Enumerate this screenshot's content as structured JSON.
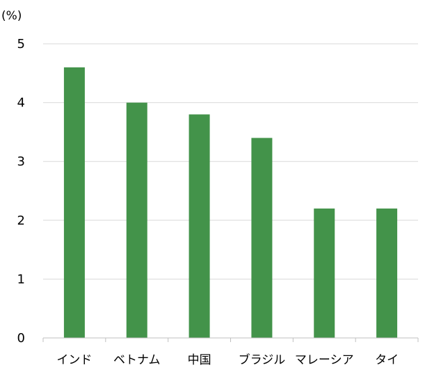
{
  "chart_data": {
    "type": "bar",
    "title": "",
    "xlabel": "",
    "ylabel": "",
    "unit_label": "(%)",
    "categories": [
      "インド",
      "ベトナム",
      "中国",
      "ブラジル",
      "マレーシア",
      "タイ"
    ],
    "values": [
      4.6,
      4.0,
      3.8,
      3.4,
      2.2,
      2.2
    ],
    "ylim": [
      0,
      5
    ],
    "yticks": [
      "0",
      "1",
      "2",
      "3",
      "4",
      "5"
    ],
    "grid": true,
    "legend": "none",
    "bar_color": "#43934a",
    "grid_color": "#d9d9d9",
    "axis_color": "#bfbfbf"
  }
}
